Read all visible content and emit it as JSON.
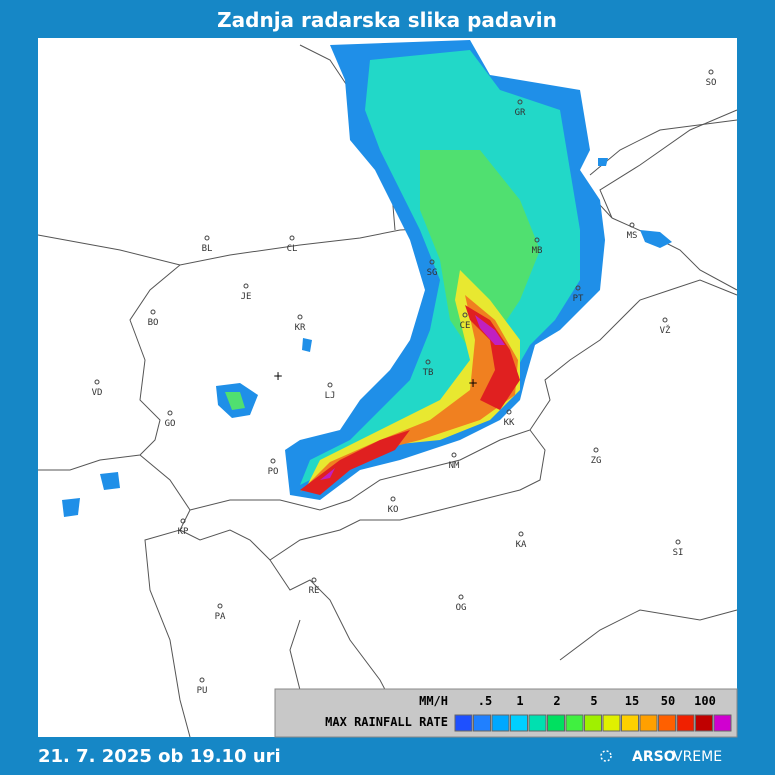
{
  "header": {
    "title": "Zadnja radarska slika padavin"
  },
  "map": {
    "places": [
      "SO",
      "GR",
      "MS",
      "BL",
      "CL",
      "JE",
      "BO",
      "KR",
      "MB",
      "PT",
      "VŽ",
      "SG",
      "CE",
      "TB",
      "LJ",
      "VD",
      "GO",
      "KK",
      "NM",
      "ZG",
      "PO",
      "KO",
      "KP",
      "KA",
      "SI",
      "RE",
      "PA",
      "OG",
      "PU"
    ]
  },
  "legend": {
    "unit": "MM/H",
    "levels": [
      ".5",
      "1",
      "2",
      "5",
      "15",
      "50",
      "100"
    ],
    "caption": "MAX RAINFALL RATE"
  },
  "footer": {
    "timestamp": "21. 7. 2025 ob 19.10 uri",
    "brand": "ARSO",
    "product": "VREME"
  }
}
